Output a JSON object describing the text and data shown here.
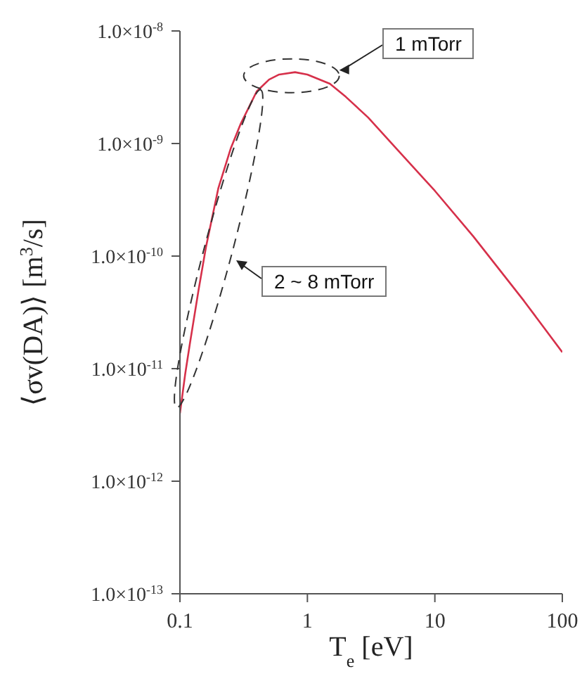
{
  "chart_data": {
    "type": "line",
    "xlabel": "T$_{e}$ [eV]",
    "ylabel": "⟨σv(DA)⟩ [m$^{3}$/s]",
    "x": [
      0.1,
      0.11,
      0.12,
      0.14,
      0.16,
      0.2,
      0.25,
      0.3,
      0.4,
      0.5,
      0.6,
      0.8,
      1,
      1.5,
      2,
      3,
      5,
      10,
      20,
      50,
      100
    ],
    "series": [
      {
        "color": "#d6304a",
        "values": [
          4e-12,
          9e-12,
          1.7e-11,
          5e-11,
          1.2e-10,
          4e-10,
          9e-10,
          1.5e-09,
          2.9e-09,
          3.7e-09,
          4.1e-09,
          4.3e-09,
          4.1e-09,
          3.4e-09,
          2.6e-09,
          1.7e-09,
          9e-10,
          3.8e-10,
          1.5e-10,
          4e-11,
          1.4e-11
        ]
      }
    ],
    "log": "xy",
    "xlim": [
      0.1,
      100
    ],
    "xticks": [
      0.1,
      1,
      10,
      100
    ],
    "ylim": [
      1e-13,
      1e-08
    ],
    "yticks": [
      {
        "value": 1e-13,
        "label": "1.0×10$^{-13}$"
      },
      {
        "value": 1e-12,
        "label": "1.0×10$^{-12}$"
      },
      {
        "value": 1e-11,
        "label": "1.0×10$^{-11}$"
      },
      {
        "value": 1e-10,
        "label": "1.0×10$^{-10}$"
      },
      {
        "value": 1e-09,
        "label": "1.0×10$^{-9}$"
      },
      {
        "value": 1e-08,
        "label": "1.0×10$^{-8}$"
      }
    ],
    "annotations": [
      "1 mTorr",
      "2 ~ 8 mTorr"
    ],
    "grid": false,
    "legend": false,
    "marker": "none",
    "line_style": "solid"
  }
}
